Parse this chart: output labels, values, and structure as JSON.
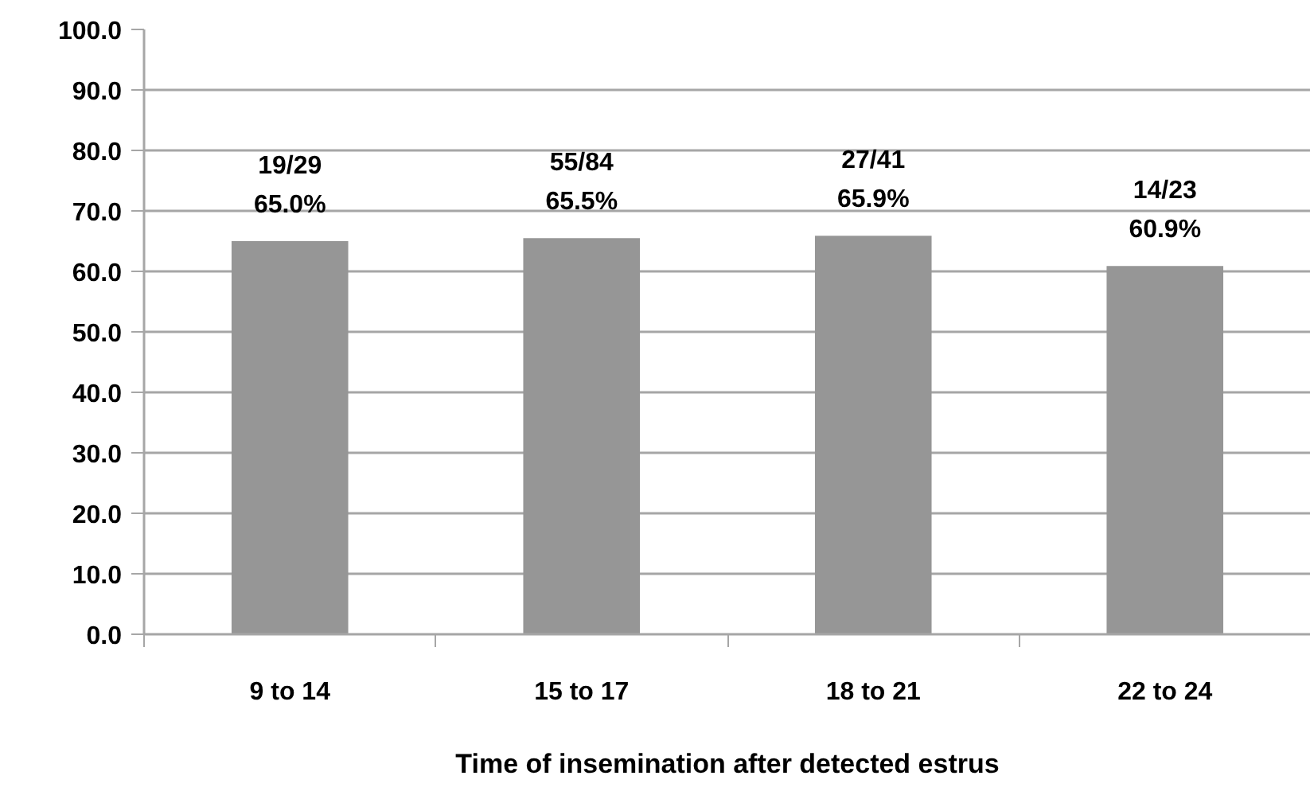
{
  "chart_data": {
    "type": "bar",
    "xlabel": "Time of insemination after detected estrus",
    "categories": [
      "9 to 14",
      "15 to 17",
      "18 to 21",
      "22 to 24"
    ],
    "values": [
      65.0,
      65.5,
      65.9,
      60.9
    ],
    "value_labels": [
      "19/29\n65.0%",
      "55/84\n65.5%",
      "27/41\n65.9%",
      "14/23\n60.9%"
    ],
    "color": "#969696",
    "ylim": [
      0,
      100
    ],
    "yticks": [
      {
        "value": 0,
        "label": "0.0"
      },
      {
        "value": 10,
        "label": "10.0"
      },
      {
        "value": 20,
        "label": "20.0"
      },
      {
        "value": 30,
        "label": "30.0"
      },
      {
        "value": 40,
        "label": "40.0"
      },
      {
        "value": 50,
        "label": "50.0"
      },
      {
        "value": 60,
        "label": "60.0"
      },
      {
        "value": 70,
        "label": "70.0"
      },
      {
        "value": 80,
        "label": "80.0"
      },
      {
        "value": 90,
        "label": "90.0"
      },
      {
        "value": 100,
        "label": "100.0"
      }
    ],
    "grid": "y"
  }
}
